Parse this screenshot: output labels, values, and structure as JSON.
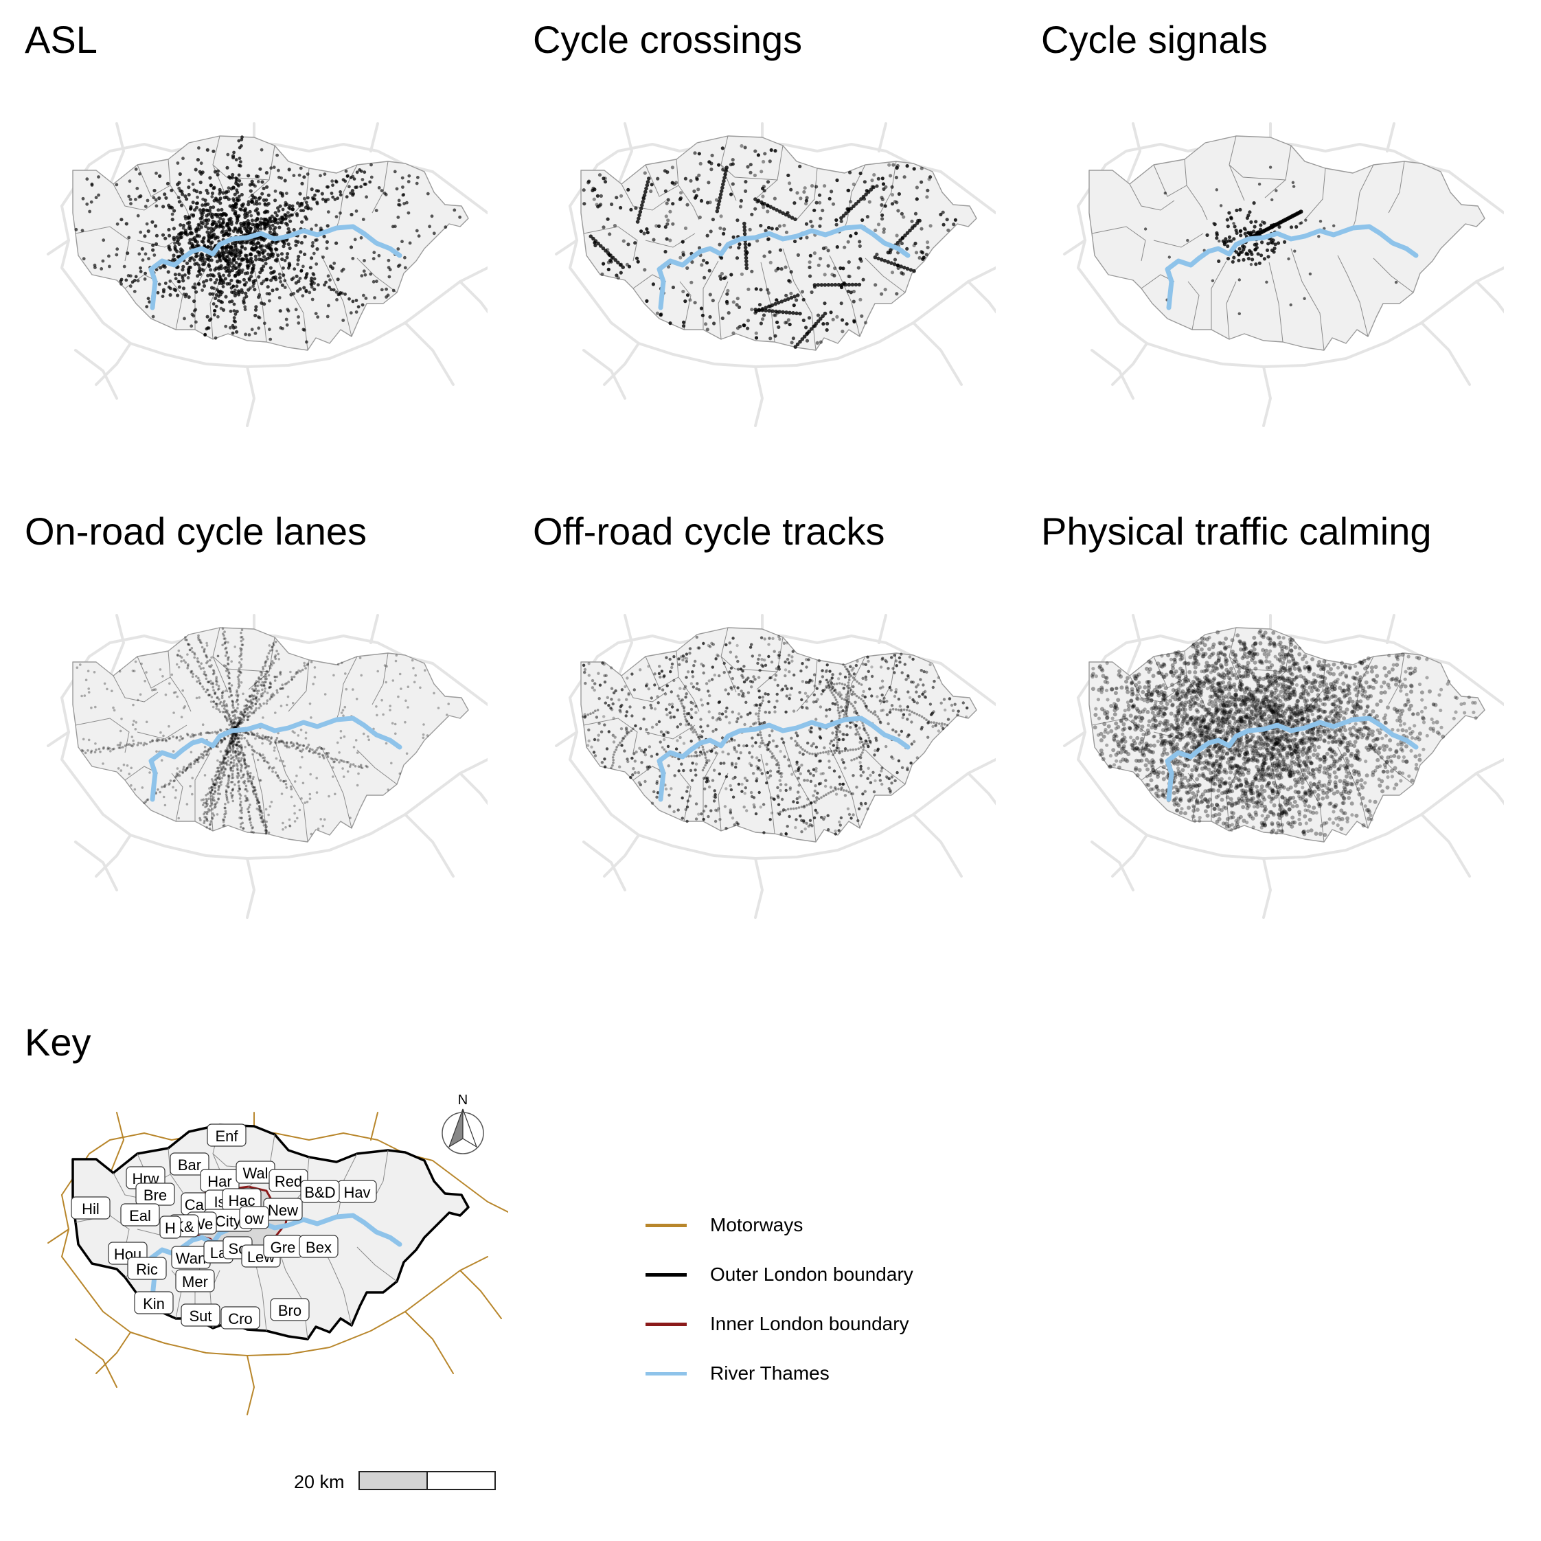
{
  "panels": [
    {
      "id": "asl",
      "title": "ASL",
      "pattern": "central-dense"
    },
    {
      "id": "crossings",
      "title": "Cycle crossings",
      "pattern": "scattered"
    },
    {
      "id": "signals",
      "title": "Cycle signals",
      "pattern": "central-sparse"
    },
    {
      "id": "lanes",
      "title": "On-road cycle lanes",
      "pattern": "radial-lines"
    },
    {
      "id": "tracks",
      "title": "Off-road cycle tracks",
      "pattern": "scattered-fine"
    },
    {
      "id": "calming",
      "title": "Physical traffic calming",
      "pattern": "very-dense"
    }
  ],
  "key": {
    "title": "Key",
    "north_label": "N",
    "scale_label": "20 km",
    "boroughs": [
      "Enf",
      "Bar",
      "Hrw",
      "Har",
      "Wal",
      "Red",
      "Hav",
      "B&D",
      "Bre",
      "Hil",
      "Cam",
      "Isl",
      "Hac",
      "New",
      "Eal",
      "City",
      "Tow",
      "Wes",
      "K&C",
      "Ham",
      "Hou",
      "Ric",
      "Wan",
      "Lam",
      "Sou",
      "Lew",
      "Gre",
      "Bex",
      "Mer",
      "Kin",
      "Sut",
      "Cro",
      "Bro"
    ],
    "borough_labels_visible": [
      "Enf",
      "Bar",
      "Hrw",
      "Har",
      "Wal",
      "Red",
      "Hav",
      "B&D",
      "Bre",
      "Hil",
      "Cam",
      "Is",
      "Hac",
      "New",
      "Eal",
      "City",
      "ow",
      "We",
      "K&",
      "H",
      "Hou",
      "Ric",
      "Wan",
      "La",
      "So",
      "Lew",
      "Gre",
      "Bex",
      "Mer",
      "Kin",
      "Sut",
      "Cro",
      "Bro"
    ]
  },
  "legend": [
    {
      "label": "Motorways",
      "color": "#B8862B"
    },
    {
      "label": "Outer London boundary",
      "color": "#000000"
    },
    {
      "label": "Inner London boundary",
      "color": "#8B1A1A"
    },
    {
      "label": "River Thames",
      "color": "#8EC3EA"
    }
  ],
  "colors": {
    "land": "#F0F0F0",
    "borough_lines": "#8a8a8a",
    "roads_faint": "#E4E4E4",
    "thames": "#8EC3EA",
    "inner_fill": "#D8D8D8",
    "points": "#000000"
  }
}
